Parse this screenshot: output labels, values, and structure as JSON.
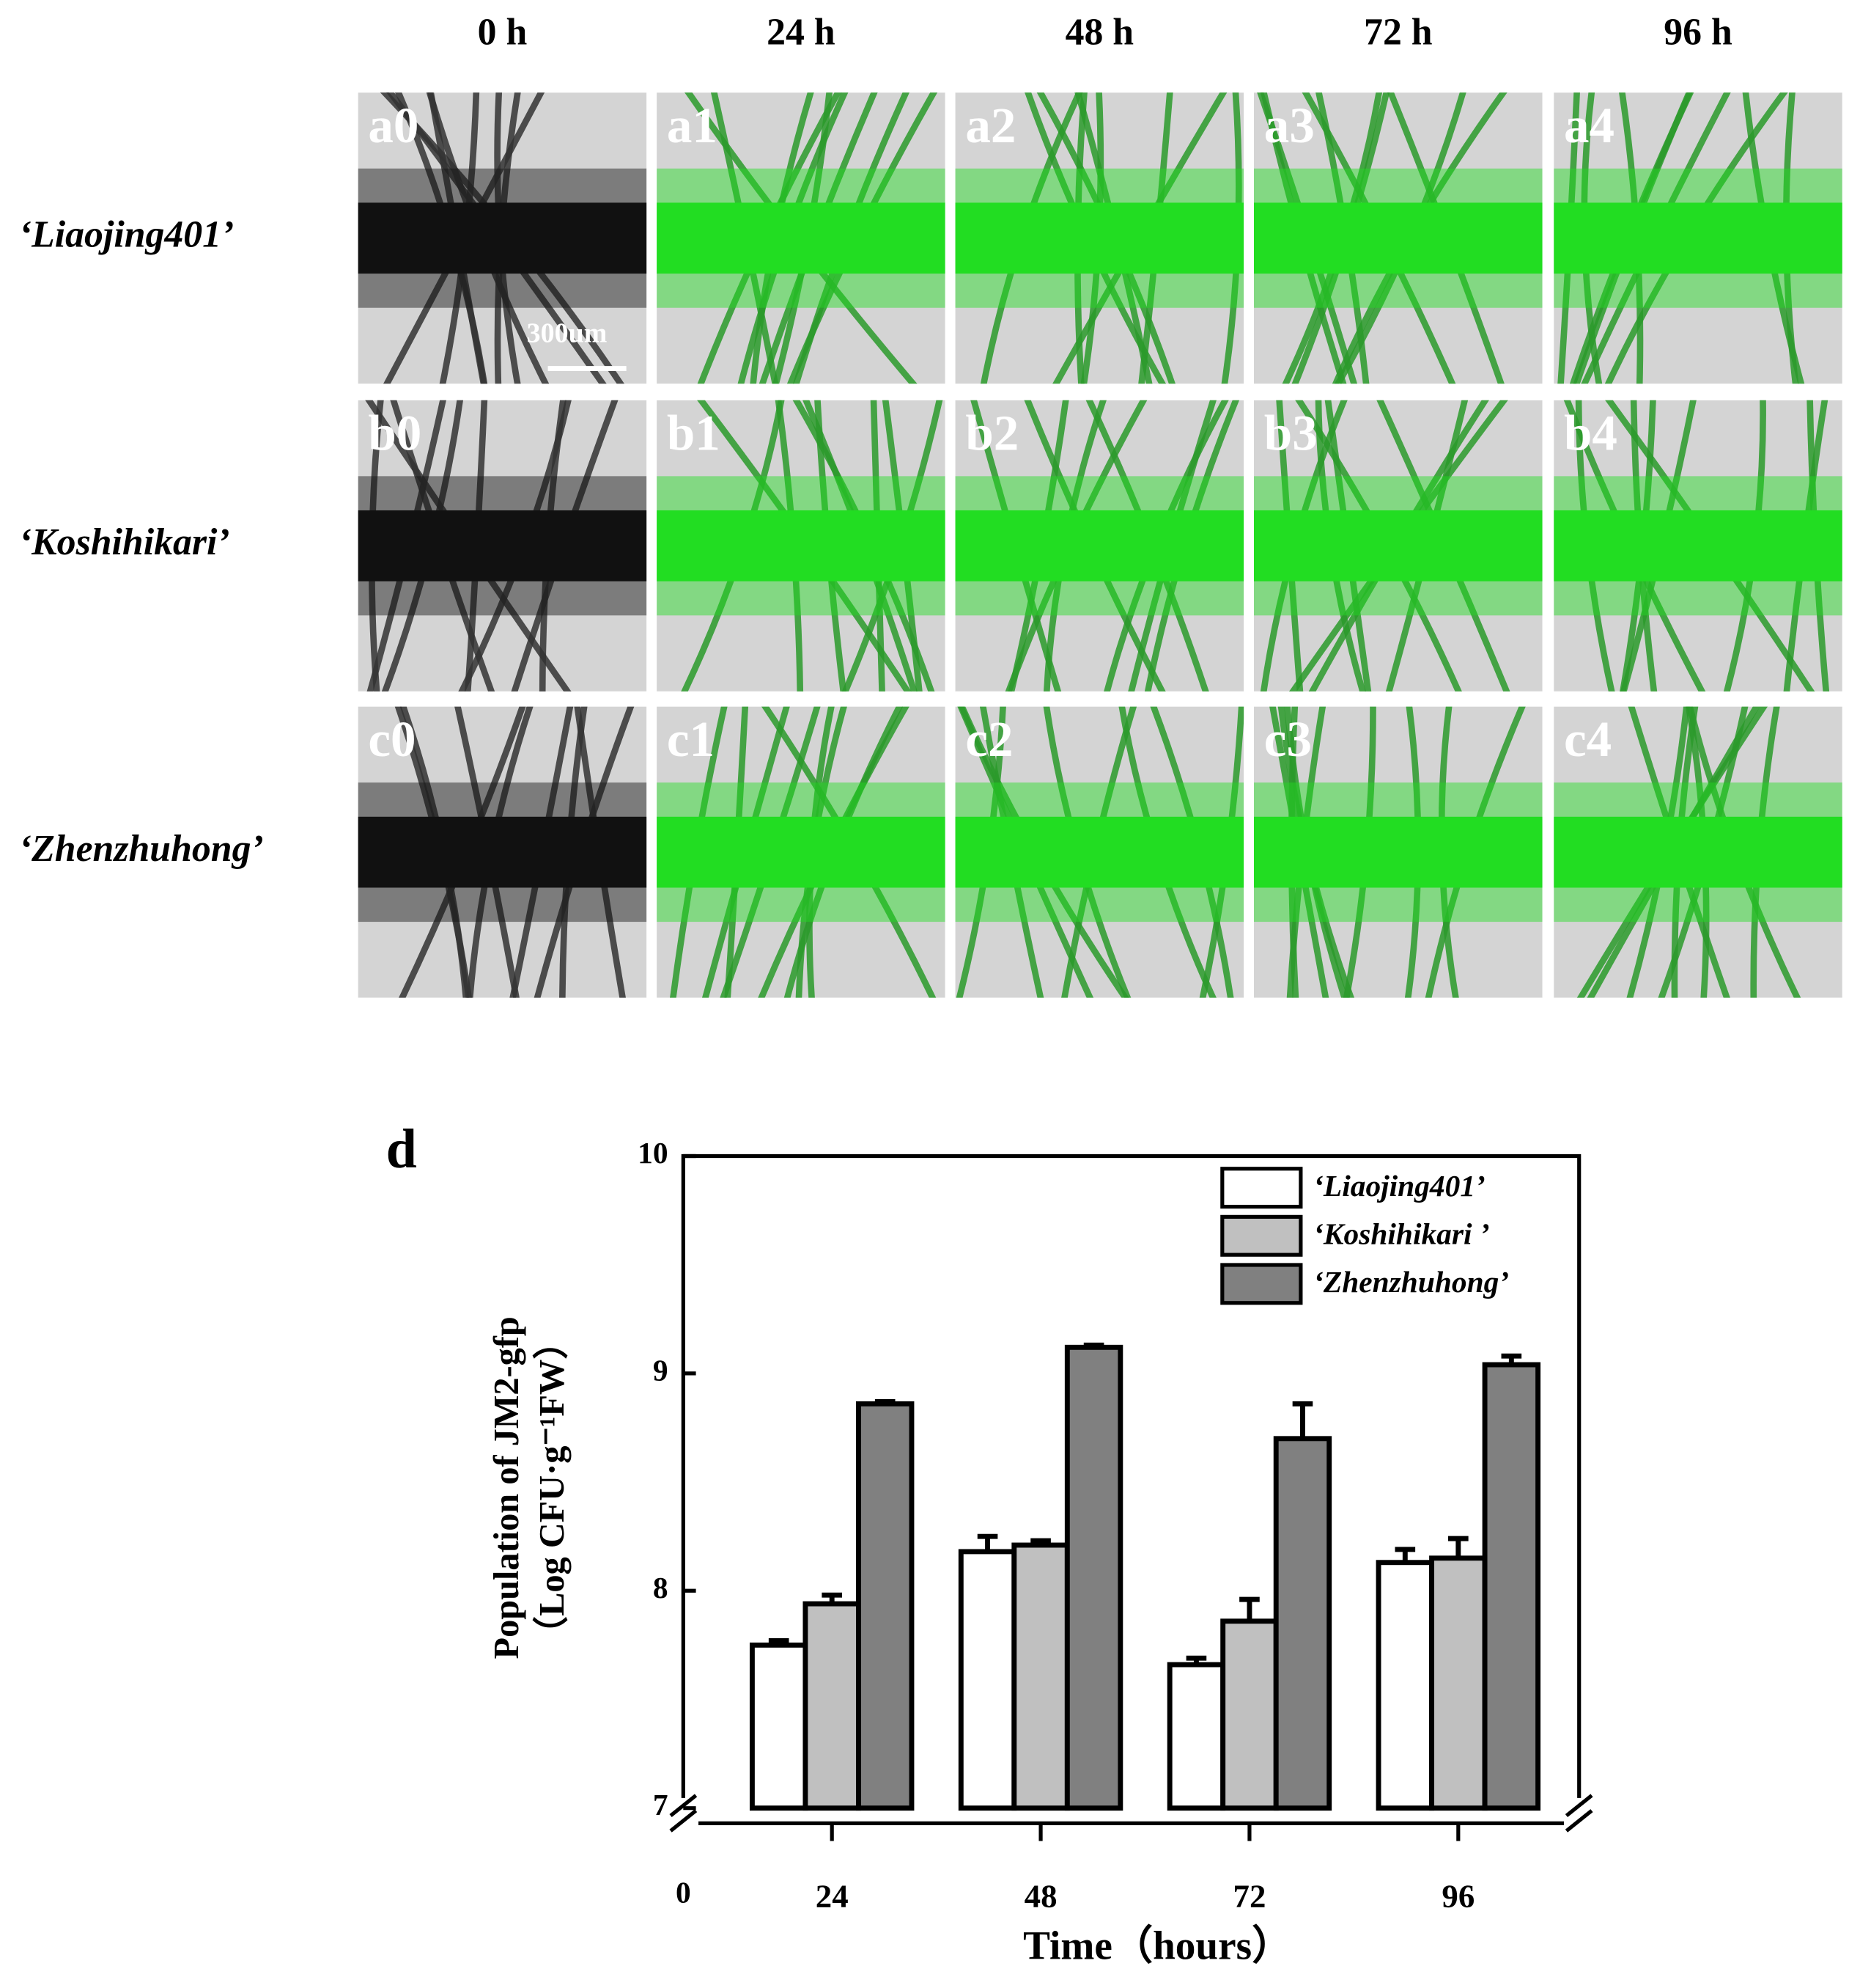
{
  "figure": {
    "column_headers": [
      "0 h",
      "24 h",
      "48 h",
      "72 h",
      "96 h"
    ],
    "row_labels": [
      "‘Liaojing401’",
      "‘Koshihikari’",
      "‘Zhenzhuhong’"
    ],
    "panel_labels": [
      [
        "a0",
        "a1",
        "a2",
        "a3",
        "a4"
      ],
      [
        "b0",
        "b1",
        "b2",
        "b3",
        "b4"
      ],
      [
        "c0",
        "c1",
        "c2",
        "c3",
        "c4"
      ]
    ],
    "scale_bar": "300um"
  },
  "chart_data": {
    "type": "bar",
    "panel_label": "d",
    "x_label": "Time（hours）",
    "y_label": [
      "Population of JM2-gfp",
      "（Log CFU·g⁻¹FW）"
    ],
    "origin_label": "0",
    "categories": [
      "24",
      "48",
      "72",
      "96"
    ],
    "series": [
      {
        "name": "‘Liaojing401’",
        "color": "#ffffff",
        "values": [
          7.75,
          8.18,
          7.66,
          8.13
        ],
        "errors": [
          0.02,
          0.07,
          0.03,
          0.06
        ]
      },
      {
        "name": "‘Koshihikari ’",
        "color": "#c0c0c0",
        "values": [
          7.94,
          8.21,
          7.86,
          8.15
        ],
        "errors": [
          0.04,
          0.02,
          0.1,
          0.09
        ]
      },
      {
        "name": "‘Zhenzhuhong’",
        "color": "#808080",
        "values": [
          8.86,
          9.12,
          8.7,
          9.04
        ],
        "errors": [
          0.01,
          0.01,
          0.16,
          0.04
        ]
      }
    ],
    "ylim": [
      7,
      10
    ],
    "yticks": [
      7,
      8,
      9,
      10
    ],
    "legend": "top-right"
  }
}
